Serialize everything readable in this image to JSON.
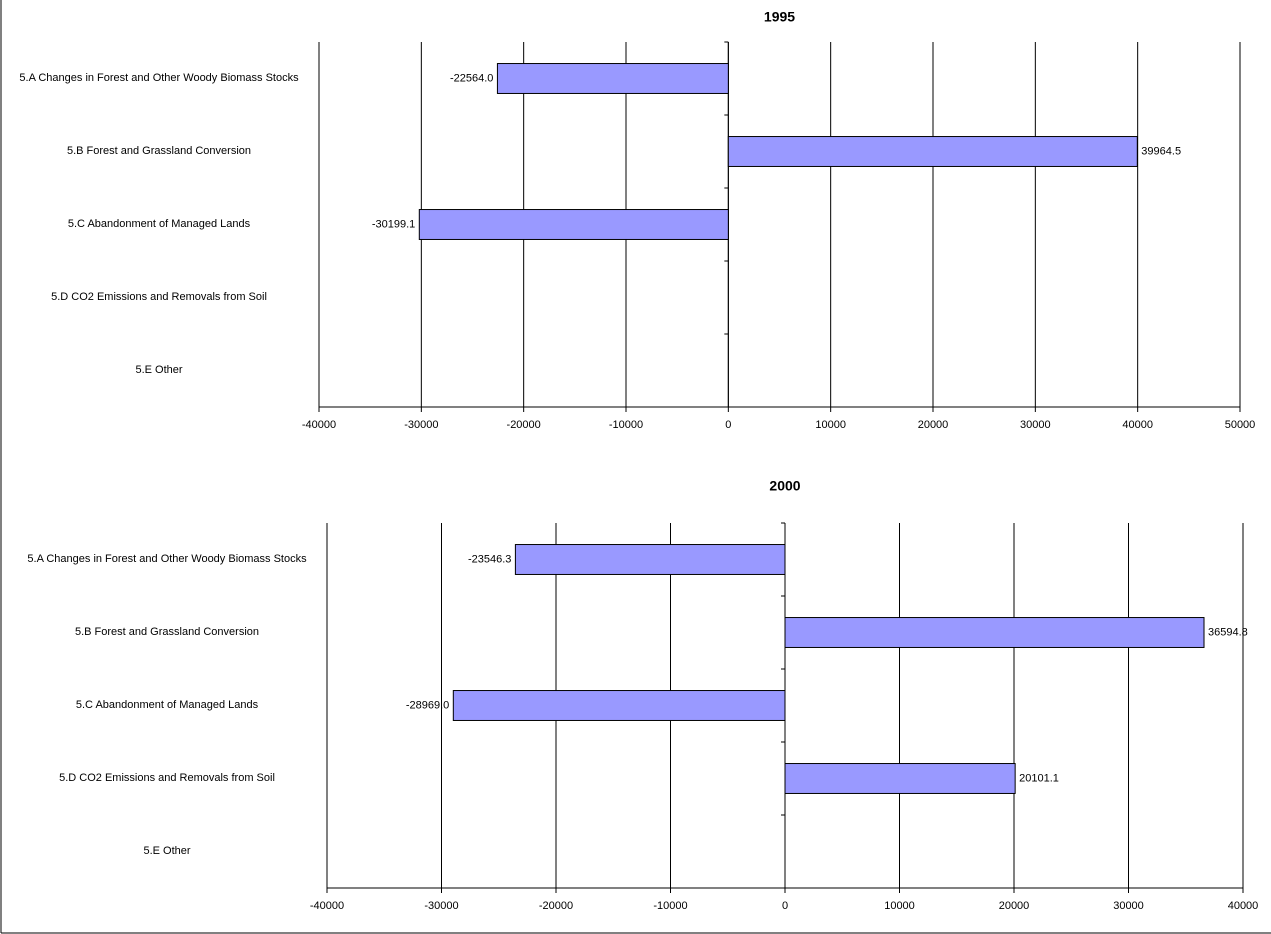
{
  "chart_data": [
    {
      "type": "bar",
      "orientation": "horizontal",
      "title": "1995",
      "categories": [
        "5.A Changes in Forest and Other Woody Biomass Stocks",
        "5.B Forest and Grassland Conversion",
        "5.C Abandonment of Managed Lands",
        "5.D CO2 Emissions and Removals from Soil",
        "5.E Other"
      ],
      "values": [
        -22564.0,
        39964.5,
        -30199.1,
        null,
        null
      ],
      "value_labels": [
        "-22564.0",
        "39964.5",
        "-30199.1",
        null,
        null
      ],
      "color": "#9999ff",
      "xlim": [
        -40000,
        50000
      ],
      "xticks": [
        -40000,
        -30000,
        -20000,
        -10000,
        0,
        10000,
        20000,
        30000,
        40000,
        50000
      ],
      "grid": true
    },
    {
      "type": "bar",
      "orientation": "horizontal",
      "title": "2000",
      "categories": [
        "5.A Changes in Forest and Other Woody Biomass Stocks",
        "5.B Forest and Grassland Conversion",
        "5.C Abandonment of Managed Lands",
        "5.D CO2 Emissions and Removals from Soil",
        "5.E Other"
      ],
      "values": [
        -23546.3,
        36594.8,
        -28969.0,
        20101.1,
        null
      ],
      "value_labels": [
        "-23546.3",
        "36594.8",
        "-28969.0",
        "20101.1",
        null
      ],
      "color": "#9999ff",
      "xlim": [
        -40000,
        40000
      ],
      "xticks": [
        -40000,
        -30000,
        -20000,
        -10000,
        0,
        10000,
        20000,
        30000,
        40000
      ],
      "grid": true
    }
  ]
}
